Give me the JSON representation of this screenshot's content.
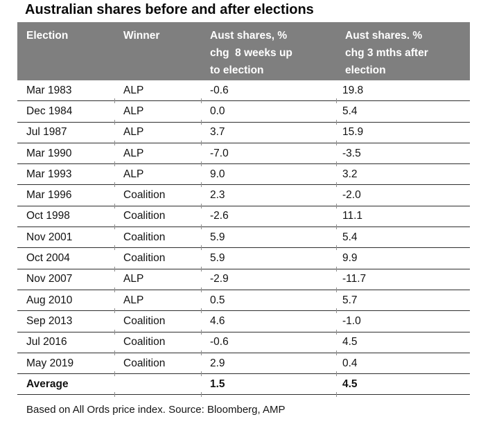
{
  "title": "Australian shares before and after elections",
  "table": {
    "headers": {
      "election": "Election",
      "winner": "Winner",
      "before": "Aust shares, %\nchg  8 weeks up\nto election",
      "after": "Aust shares. %\nchg 3 mths after\nelection"
    },
    "rows": [
      {
        "election": "Mar 1983",
        "winner": "ALP",
        "before": "-0.6",
        "after": "19.8"
      },
      {
        "election": "Dec 1984",
        "winner": "ALP",
        "before": "0.0",
        "after": "5.4"
      },
      {
        "election": "Jul 1987",
        "winner": "ALP",
        "before": "3.7",
        "after": "15.9"
      },
      {
        "election": "Mar 1990",
        "winner": "ALP",
        "before": "-7.0",
        "after": "-3.5"
      },
      {
        "election": "Mar 1993",
        "winner": "ALP",
        "before": "9.0",
        "after": "3.2"
      },
      {
        "election": "Mar 1996",
        "winner": "Coalition",
        "before": "2.3",
        "after": "-2.0"
      },
      {
        "election": "Oct 1998",
        "winner": "Coalition",
        "before": "-2.6",
        "after": "11.1"
      },
      {
        "election": "Nov 2001",
        "winner": "Coalition",
        "before": "5.9",
        "after": "5.4"
      },
      {
        "election": "Oct 2004",
        "winner": "Coalition",
        "before": "5.9",
        "after": "9.9"
      },
      {
        "election": "Nov 2007",
        "winner": "ALP",
        "before": "-2.9",
        "after": "-11.7"
      },
      {
        "election": "Aug 2010",
        "winner": "ALP",
        "before": "0.5",
        "after": "5.7"
      },
      {
        "election": "Sep 2013",
        "winner": "Coalition",
        "before": "4.6",
        "after": "-1.0"
      },
      {
        "election": "Jul 2016",
        "winner": "Coalition",
        "before": "-0.6",
        "after": "4.5"
      },
      {
        "election": "May 2019",
        "winner": "Coalition",
        "before": "2.9",
        "after": "0.4"
      }
    ],
    "average": {
      "label": "Average",
      "before": "1.5",
      "after": "4.5"
    }
  },
  "footnote": "Based on All Ords price index. Source: Bloomberg, AMP",
  "colors": {
    "header_bg": "#7f7f7f",
    "header_text": "#ffffff",
    "divider": "#2d2d2d",
    "text": "#111111"
  }
}
